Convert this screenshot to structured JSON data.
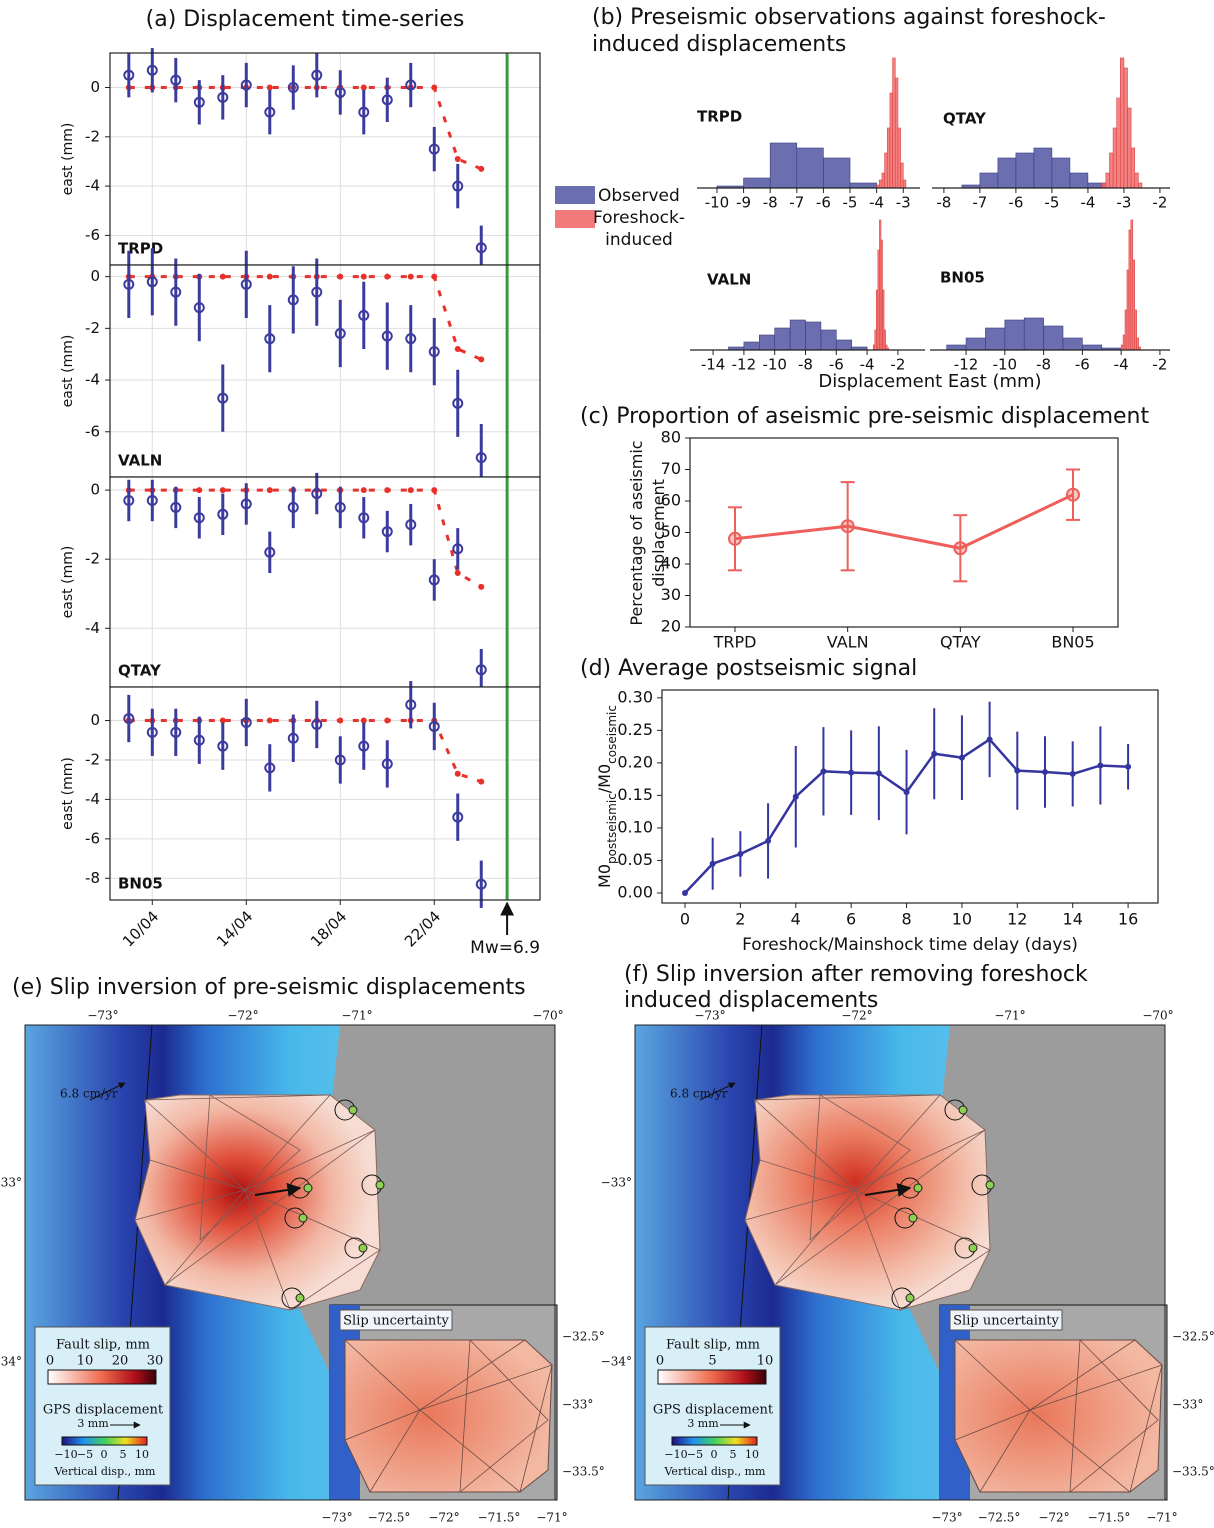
{
  "chart_data": [
    {
      "type": "scatter",
      "title": "(a)  Displacement time-series",
      "label": "TRPD",
      "ylabel": "east (mm)",
      "x": [
        9,
        10,
        11,
        12,
        13,
        14,
        15,
        16,
        17,
        18,
        19,
        20,
        21,
        22,
        23,
        24
      ],
      "series": [
        {
          "color": "#3b3b9e",
          "values": [
            0.5,
            0.7,
            0.3,
            -0.6,
            -0.4,
            0.1,
            -1.0,
            0.0,
            0.5,
            -0.2,
            -1.0,
            -0.5,
            0.1,
            -2.5,
            -4.0,
            -6.5
          ],
          "errors": [
            0.9,
            0.9,
            0.9,
            0.9,
            0.9,
            0.9,
            0.9,
            0.9,
            0.9,
            0.9,
            0.9,
            0.9,
            0.9,
            0.9,
            0.9,
            0.9
          ]
        },
        {
          "color": "#e8312a",
          "values": [
            0,
            0,
            0,
            0,
            0,
            0,
            0,
            0,
            0,
            0,
            0,
            0,
            0,
            0,
            -2.9,
            -3.3
          ]
        }
      ],
      "xlim": [
        8.2,
        26.5
      ],
      "ylim": [
        -7.2,
        1.4
      ],
      "yticks": [
        -6,
        -4,
        -2,
        0
      ],
      "grid": true
    },
    {
      "type": "scatter",
      "label": "VALN",
      "ylabel": "east (mm)",
      "x": [
        9,
        10,
        11,
        12,
        13,
        14,
        15,
        16,
        17,
        18,
        19,
        20,
        21,
        22,
        23,
        24
      ],
      "series": [
        {
          "color": "#3b3b9e",
          "values": [
            -0.3,
            -0.2,
            -0.6,
            -1.2,
            -4.7,
            -0.3,
            -2.4,
            -0.9,
            -0.6,
            -2.2,
            -1.5,
            -2.3,
            -2.4,
            -2.9,
            -4.9,
            -7.0
          ],
          "errors": [
            1.3,
            1.3,
            1.3,
            1.3,
            1.3,
            1.3,
            1.3,
            1.3,
            1.3,
            1.3,
            1.3,
            1.3,
            1.3,
            1.3,
            1.3,
            1.3
          ]
        },
        {
          "color": "#e8312a",
          "values": [
            0,
            0,
            0,
            0,
            0,
            0,
            0,
            0,
            0,
            0,
            0,
            0,
            0,
            0,
            -2.8,
            -3.2
          ]
        }
      ],
      "xlim": [
        8.2,
        26.5
      ],
      "ylim": [
        -7.75,
        0.45
      ],
      "yticks": [
        -6,
        -4,
        -2,
        0
      ],
      "grid": true
    },
    {
      "type": "scatter",
      "label": "QTAY",
      "ylabel": "east (mm)",
      "x": [
        9,
        10,
        11,
        12,
        13,
        14,
        15,
        16,
        17,
        18,
        19,
        20,
        21,
        22,
        23,
        24
      ],
      "series": [
        {
          "color": "#3b3b9e",
          "values": [
            -0.3,
            -0.3,
            -0.5,
            -0.8,
            -0.7,
            -0.4,
            -1.8,
            -0.5,
            -0.1,
            -0.5,
            -0.8,
            -1.2,
            -1.0,
            -2.6,
            -1.7,
            -5.2
          ],
          "errors": [
            0.6,
            0.6,
            0.6,
            0.6,
            0.6,
            0.6,
            0.6,
            0.6,
            0.6,
            0.6,
            0.6,
            0.6,
            0.6,
            0.6,
            0.6,
            0.6
          ]
        },
        {
          "color": "#e8312a",
          "values": [
            0,
            0,
            0,
            0,
            0,
            0,
            0,
            0,
            0,
            0,
            0,
            0,
            0,
            0,
            -2.4,
            -2.8
          ]
        }
      ],
      "xlim": [
        8.2,
        26.5
      ],
      "ylim": [
        -5.7,
        0.38
      ],
      "yticks": [
        -4,
        -2,
        0
      ],
      "grid": true
    },
    {
      "type": "scatter",
      "label": "BN05",
      "ylabel": "east (mm)",
      "x": [
        9,
        10,
        11,
        12,
        13,
        14,
        15,
        16,
        17,
        18,
        19,
        20,
        21,
        22,
        23,
        24
      ],
      "series": [
        {
          "color": "#3b3b9e",
          "values": [
            0.1,
            -0.6,
            -0.6,
            -1.0,
            -1.3,
            -0.1,
            -2.4,
            -0.9,
            -0.2,
            -2.0,
            -1.3,
            -2.2,
            0.8,
            -0.3,
            -4.9,
            -8.3
          ],
          "errors": [
            1.2,
            1.2,
            1.2,
            1.2,
            1.2,
            1.2,
            1.2,
            1.2,
            1.2,
            1.2,
            1.2,
            1.2,
            1.2,
            1.2,
            1.2,
            1.2
          ]
        },
        {
          "color": "#e8312a",
          "values": [
            0,
            0,
            0,
            0,
            0,
            0,
            0,
            0,
            0,
            0,
            0,
            0,
            0,
            0,
            -2.7,
            -3.1
          ]
        }
      ],
      "xlim": [
        8.2,
        26.5
      ],
      "ylim": [
        -9.1,
        1.7
      ],
      "yticks": [
        -8,
        -6,
        -4,
        -2,
        0
      ],
      "grid": true,
      "xticks": [
        {
          "value": 10,
          "label": "10/04"
        },
        {
          "value": 14,
          "label": "14/04"
        },
        {
          "value": 18,
          "label": "18/04"
        },
        {
          "value": 22,
          "label": "22/04"
        }
      ],
      "event_x": 25.1,
      "event_color": "#3a9a3a",
      "annotation": "Mw=6.9"
    },
    {
      "type": "histogram",
      "title": "(b) Preseismic observations against foreshock-induced displacements",
      "label": "TRPD",
      "series": [
        {
          "name": "Observed",
          "color": "#5b5ea6",
          "bins": [
            -10,
            -9,
            -8,
            -7,
            -6,
            -5,
            -4
          ],
          "counts": [
            2,
            10,
            45,
            40,
            30,
            5
          ]
        },
        {
          "name": "Foreshock-induced",
          "color": "#f26b6b",
          "bins": [
            -4.0,
            -3.9,
            -3.8,
            -3.7,
            -3.6,
            -3.5,
            -3.4,
            -3.3,
            -3.2,
            -3.1,
            -3.0,
            -2.9
          ],
          "counts": [
            3,
            8,
            15,
            35,
            60,
            95,
            130,
            110,
            60,
            25,
            8
          ]
        }
      ],
      "xlim": [
        -10.75,
        -2.37
      ],
      "xticks": [
        -10,
        -9,
        -8,
        -7,
        -6,
        -5,
        -4,
        -3
      ]
    },
    {
      "type": "histogram",
      "label": "QTAY",
      "series": [
        {
          "color": "#5b5ea6",
          "bins": [
            -7.5,
            -7,
            -6.5,
            -6,
            -5.5,
            -5,
            -4.5,
            -4,
            -3.5
          ],
          "counts": [
            3,
            15,
            30,
            35,
            40,
            30,
            15,
            5
          ]
        },
        {
          "color": "#f26b6b",
          "bins": [
            -3.6,
            -3.5,
            -3.4,
            -3.3,
            -3.2,
            -3.1,
            -3.0,
            -2.9,
            -2.8,
            -2.7,
            -2.6,
            -2.5
          ],
          "counts": [
            5,
            15,
            35,
            60,
            90,
            130,
            120,
            80,
            40,
            15,
            5
          ]
        }
      ],
      "xlim": [
        -8.33,
        -1.72
      ],
      "xticks": [
        -8,
        -7,
        -6,
        -5,
        -4,
        -3,
        -2
      ]
    },
    {
      "type": "histogram",
      "label": "VALN",
      "xlabel": "Displacement East (mm)",
      "series": [
        {
          "color": "#5b5ea6",
          "bins": [
            -13,
            -12,
            -11,
            -10,
            -9,
            -8,
            -7,
            -6,
            -5,
            -4
          ],
          "counts": [
            3,
            8,
            15,
            22,
            30,
            28,
            20,
            10,
            3
          ]
        },
        {
          "color": "#f26b6b",
          "bins": [
            -3.6,
            -3.5,
            -3.4,
            -3.3,
            -3.2,
            -3.1,
            -3.0,
            -2.9,
            -2.8,
            -2.7,
            -2.6
          ],
          "counts": [
            5,
            20,
            60,
            100,
            130,
            110,
            60,
            20,
            5,
            2
          ]
        }
      ],
      "xlim": [
        -15.5,
        -0.24
      ],
      "xticks": [
        -14,
        -12,
        -10,
        -8,
        -6,
        -4,
        -2
      ]
    },
    {
      "type": "histogram",
      "label": "BN05",
      "series": [
        {
          "color": "#5b5ea6",
          "bins": [
            -13,
            -12,
            -11,
            -10,
            -9,
            -8,
            -7,
            -6,
            -5,
            -4
          ],
          "counts": [
            5,
            12,
            22,
            30,
            32,
            24,
            12,
            5,
            2
          ]
        },
        {
          "color": "#f26b6b",
          "bins": [
            -4.0,
            -3.9,
            -3.8,
            -3.7,
            -3.6,
            -3.5,
            -3.4,
            -3.3,
            -3.2,
            -3.1,
            -3.0
          ],
          "counts": [
            5,
            15,
            40,
            80,
            120,
            130,
            90,
            40,
            12,
            3
          ]
        }
      ],
      "xlim": [
        -13.86,
        -1.48
      ],
      "xticks": [
        -12,
        -10,
        -8,
        -6,
        -4,
        -2
      ]
    },
    {
      "type": "line",
      "title": "(c) Proportion of aseismic pre-seismic displacement",
      "ylabel": "Percentage of aseismic displacement",
      "categories": [
        "TRPD",
        "VALN",
        "QTAY",
        "BN05"
      ],
      "series": [
        {
          "color": "#ee5f5b",
          "values": [
            48,
            52,
            45,
            62
          ],
          "errors": [
            10,
            14,
            10.5,
            8
          ]
        }
      ],
      "ylim": [
        20,
        80
      ],
      "yticks": [
        20,
        30,
        40,
        50,
        60,
        70,
        80
      ]
    },
    {
      "type": "line",
      "title": "(d) Average postseismic signal",
      "ylabel": [
        "M0",
        "postseismic",
        "/M0",
        "coseismic"
      ],
      "xlabel": "Foreshock/Mainshock time delay (days)",
      "x": [
        0,
        1,
        2,
        3,
        4,
        5,
        6,
        7,
        8,
        9,
        10,
        11,
        12,
        13,
        14,
        15,
        16
      ],
      "series": [
        {
          "color": "#3535a0",
          "values": [
            0,
            0.045,
            0.06,
            0.08,
            0.148,
            0.187,
            0.185,
            0.184,
            0.155,
            0.214,
            0.208,
            0.236,
            0.188,
            0.186,
            0.183,
            0.196,
            0.194
          ],
          "errors": [
            0,
            0.04,
            0.035,
            0.058,
            0.078,
            0.068,
            0.065,
            0.072,
            0.065,
            0.07,
            0.065,
            0.058,
            0.06,
            0.055,
            0.05,
            0.06,
            0.035
          ]
        }
      ],
      "xlim": [
        -0.83,
        17.08
      ],
      "xticks": [
        0,
        2,
        4,
        6,
        8,
        10,
        12,
        14,
        16
      ],
      "ylim": [
        -0.0154,
        0.312
      ],
      "yticks": [
        {
          "value": 0,
          "label": "0.00"
        },
        {
          "value": 0.05,
          "label": "0.05"
        },
        {
          "value": 0.1,
          "label": "0.10"
        },
        {
          "value": 0.15,
          "label": "0.15"
        },
        {
          "value": 0.2,
          "label": "0.20"
        },
        {
          "value": 0.25,
          "label": "0.25"
        },
        {
          "value": 0.3,
          "label": "0.30"
        }
      ]
    }
  ],
  "maps": [
    {
      "title": "(e) Slip inversion of pre-seismic displacements",
      "top_ticks": [
        "−73°",
        "−72°",
        "−71°",
        "−70°"
      ],
      "left_ticks": [
        "−33°",
        "−34°"
      ],
      "velocity": "6.8 cm/yr",
      "slip_legend": "Fault slip, mm",
      "slip_ticks": [
        "0",
        "10",
        "20",
        "30"
      ],
      "gps_legend": "GPS displacement",
      "gps_scale": "3 mm",
      "vertical_ticks": [
        "−10",
        "−5",
        "0",
        "5",
        "10"
      ],
      "vertical_legend": "Vertical disp., mm",
      "inset_title": "Slip uncertainty",
      "inset_right_ticks": [
        "−32.5°",
        "−33°",
        "−33.5°"
      ],
      "inset_bottom_ticks": [
        "−73°",
        "−72.5°",
        "−72°",
        "−71.5°",
        "−71°"
      ]
    },
    {
      "title": "(f) Slip inversion after removing foreshock induced displacements",
      "top_ticks": [
        "−73°",
        "−72°",
        "−71°",
        "−70°"
      ],
      "left_ticks": [
        "−33°",
        "−34°"
      ],
      "velocity": "6.8 cm/yr",
      "slip_legend": "Fault slip, mm",
      "slip_ticks": [
        "0",
        "5",
        "10"
      ],
      "gps_legend": "GPS displacement",
      "gps_scale": "3 mm",
      "vertical_ticks": [
        "−10",
        "−5",
        "0",
        "5",
        "10"
      ],
      "vertical_legend": "Vertical disp., mm",
      "inset_title": "Slip uncertainty",
      "inset_right_ticks": [
        "−32.5°",
        "−33°",
        "−33.5°"
      ],
      "inset_bottom_ticks": [
        "−73°",
        "−72.5°",
        "−72°",
        "−71.5°",
        "−71°"
      ]
    }
  ]
}
